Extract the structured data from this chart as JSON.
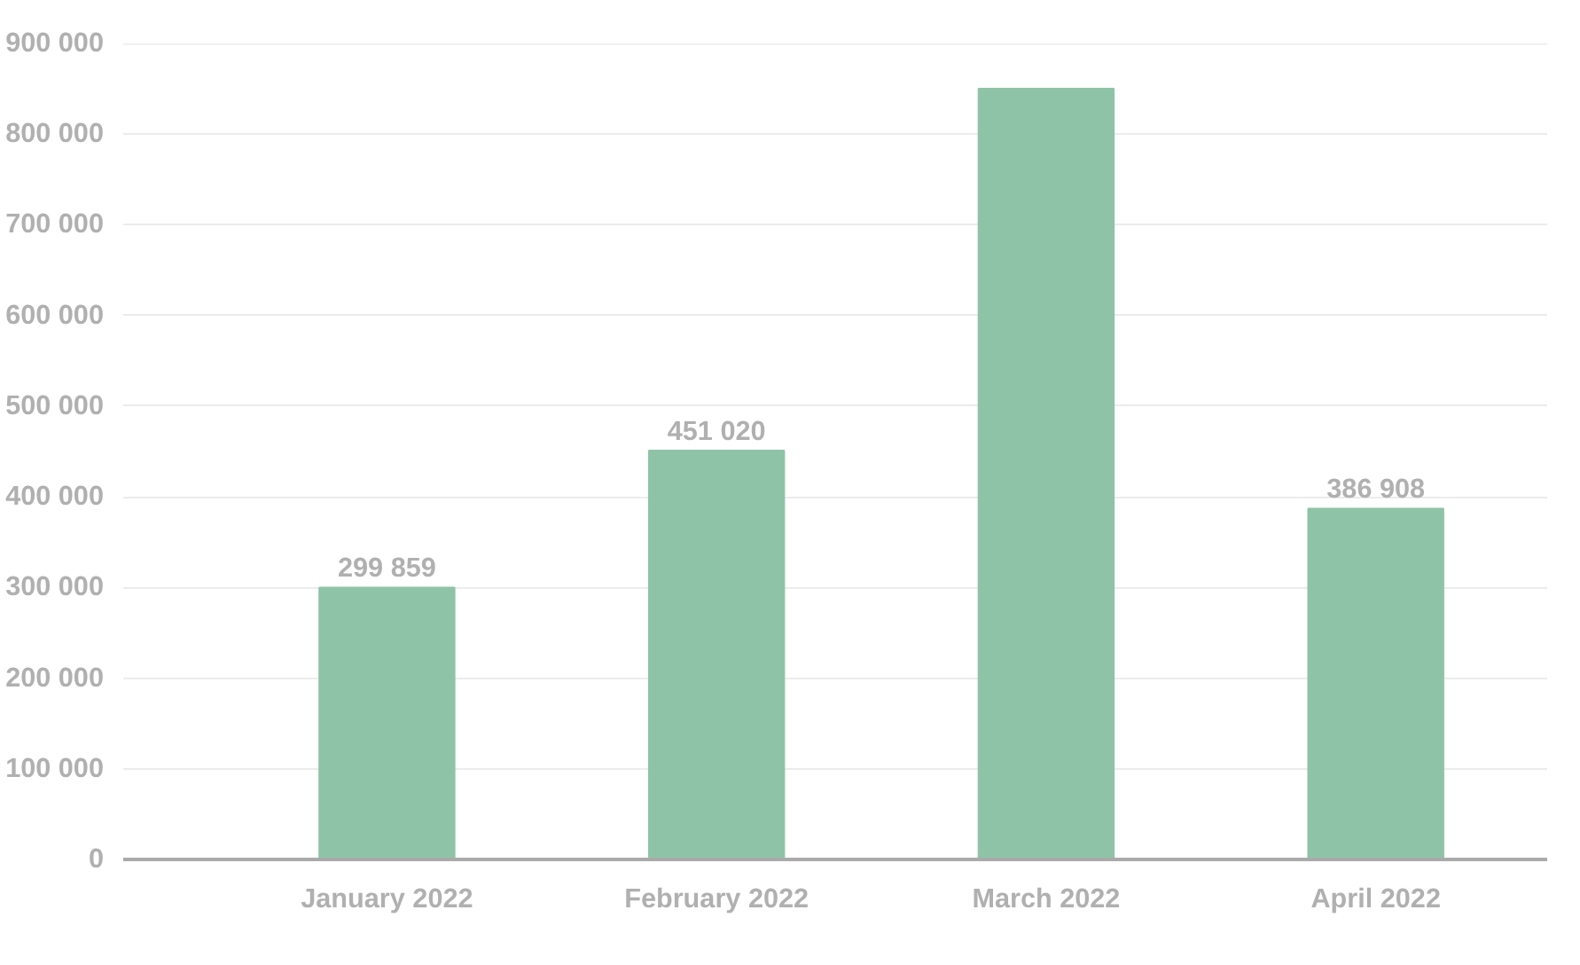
{
  "chart_data": {
    "type": "bar",
    "categories": [
      "January 2022",
      "February 2022",
      "March 2022",
      "April 2022"
    ],
    "values": [
      299859,
      451020,
      850000,
      386908
    ],
    "value_labels": [
      "299 859",
      "451 020",
      null,
      "386 908"
    ],
    "color": "#8fc3a7",
    "ylim": [
      0,
      900000
    ],
    "yticks": [
      {
        "value": 0,
        "label": "0"
      },
      {
        "value": 100000,
        "label": "100 000"
      },
      {
        "value": 200000,
        "label": "200 000"
      },
      {
        "value": 300000,
        "label": "300 000"
      },
      {
        "value": 400000,
        "label": "400 000"
      },
      {
        "value": 500000,
        "label": "500 000"
      },
      {
        "value": 600000,
        "label": "600 000"
      },
      {
        "value": 700000,
        "label": "700 000"
      },
      {
        "value": 800000,
        "label": "800 000"
      },
      {
        "value": 900000,
        "label": "900 000"
      }
    ],
    "grid": "y"
  }
}
